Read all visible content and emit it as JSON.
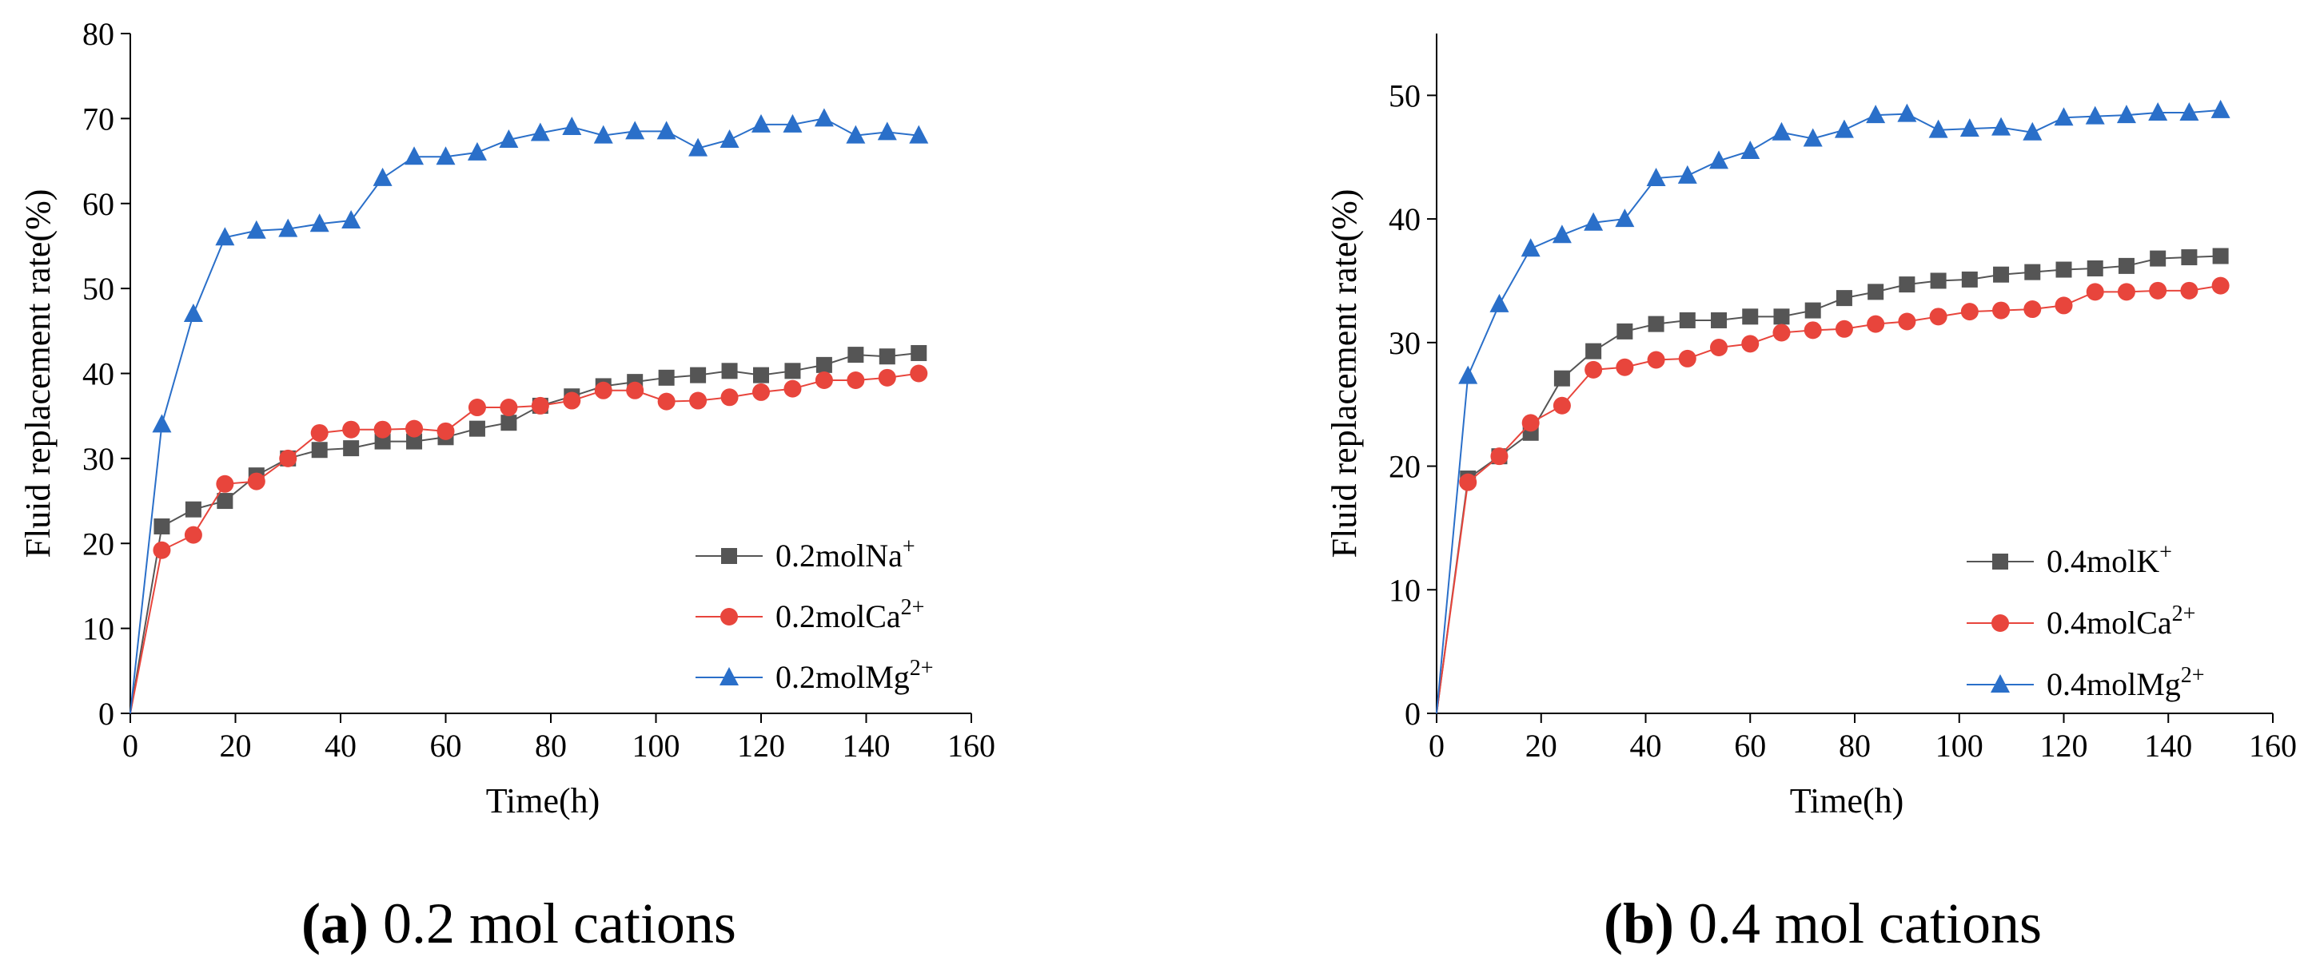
{
  "chart_data": [
    {
      "type": "line",
      "panel": "a",
      "caption_letter": "(a)",
      "caption_text": " 0.2 mol cations",
      "xlabel": "Time(h)",
      "ylabel": "Fluid replacement rate(%)",
      "xlim": [
        0,
        160
      ],
      "ylim": [
        0,
        80
      ],
      "xticks": [
        0,
        20,
        40,
        60,
        80,
        100,
        120,
        140,
        160
      ],
      "yticks": [
        0,
        10,
        20,
        30,
        40,
        50,
        60,
        70,
        80
      ],
      "legend_position": "lower-right",
      "series": [
        {
          "name": "0.2molNa",
          "superscript": "+",
          "marker": "square",
          "color": "#555555",
          "x": [
            0,
            6,
            12,
            18,
            24,
            30,
            36,
            42,
            48,
            54,
            60,
            66,
            72,
            78,
            84,
            90,
            96,
            102,
            108,
            114,
            120,
            126,
            132,
            138,
            144,
            150
          ],
          "y": [
            0,
            22,
            24,
            25,
            28,
            30,
            31,
            31.2,
            32,
            32,
            32.5,
            33.5,
            34.2,
            36.2,
            37.3,
            38.5,
            39,
            39.5,
            39.8,
            40.3,
            39.8,
            40.3,
            41,
            42.2,
            42,
            42.4
          ]
        },
        {
          "name": "0.2molCa",
          "superscript": "2+",
          "marker": "circle",
          "color": "#e8453c",
          "x": [
            0,
            6,
            12,
            18,
            24,
            30,
            36,
            42,
            48,
            54,
            60,
            66,
            72,
            78,
            84,
            90,
            96,
            102,
            108,
            114,
            120,
            126,
            132,
            138,
            144,
            150
          ],
          "y": [
            0,
            19.2,
            21,
            27,
            27.3,
            30,
            33,
            33.4,
            33.4,
            33.5,
            33.2,
            36,
            36,
            36.2,
            36.8,
            38,
            38,
            36.7,
            36.8,
            37.2,
            37.8,
            38.2,
            39.2,
            39.2,
            39.5,
            40
          ]
        },
        {
          "name": "0.2molMg",
          "superscript": "2+",
          "marker": "triangle",
          "color": "#2a6fc9",
          "x": [
            0,
            6,
            12,
            18,
            24,
            30,
            36,
            42,
            48,
            54,
            60,
            66,
            72,
            78,
            84,
            90,
            96,
            102,
            108,
            114,
            120,
            126,
            132,
            138,
            144,
            150
          ],
          "y": [
            0,
            34,
            47,
            56,
            56.8,
            57,
            57.6,
            58,
            63,
            65.5,
            65.5,
            66,
            67.5,
            68.3,
            69,
            68,
            68.5,
            68.5,
            66.5,
            67.5,
            69.3,
            69.3,
            70,
            68,
            68.4,
            68
          ]
        }
      ]
    },
    {
      "type": "line",
      "panel": "b",
      "caption_letter": "(b)",
      "caption_text": " 0.4 mol cations",
      "xlabel": "Time(h)",
      "ylabel": "Fluid replacement rate(%)",
      "xlim": [
        0,
        160
      ],
      "ylim": [
        0,
        55
      ],
      "xticks": [
        0,
        20,
        40,
        60,
        80,
        100,
        120,
        140,
        160
      ],
      "yticks": [
        0,
        10,
        20,
        30,
        40,
        50
      ],
      "legend_position": "lower-right",
      "series": [
        {
          "name": "0.4molK",
          "superscript": "+",
          "marker": "square",
          "color": "#555555",
          "x": [
            0,
            6,
            12,
            18,
            24,
            30,
            36,
            42,
            48,
            54,
            60,
            66,
            72,
            78,
            84,
            90,
            96,
            102,
            108,
            114,
            120,
            126,
            132,
            138,
            144,
            150
          ],
          "y": [
            0,
            19,
            20.8,
            22.7,
            27.1,
            29.3,
            30.9,
            31.5,
            31.8,
            31.8,
            32.1,
            32.1,
            32.6,
            33.6,
            34.1,
            34.7,
            35,
            35.1,
            35.5,
            35.7,
            35.9,
            36,
            36.2,
            36.8,
            36.9,
            37
          ]
        },
        {
          "name": "0.4molCa",
          "superscript": "2+",
          "marker": "circle",
          "color": "#e8453c",
          "x": [
            0,
            6,
            12,
            18,
            24,
            30,
            36,
            42,
            48,
            54,
            60,
            66,
            72,
            78,
            84,
            90,
            96,
            102,
            108,
            114,
            120,
            126,
            132,
            138,
            144,
            150
          ],
          "y": [
            0,
            18.7,
            20.8,
            23.5,
            24.9,
            27.8,
            28,
            28.6,
            28.7,
            29.6,
            29.9,
            30.8,
            31,
            31.1,
            31.5,
            31.7,
            32.1,
            32.5,
            32.6,
            32.7,
            33,
            34.1,
            34.1,
            34.2,
            34.2,
            34.6
          ]
        },
        {
          "name": "0.4molMg",
          "superscript": "2+",
          "marker": "triangle",
          "color": "#2a6fc9",
          "x": [
            0,
            6,
            12,
            18,
            24,
            30,
            36,
            42,
            48,
            54,
            60,
            66,
            72,
            78,
            84,
            90,
            96,
            102,
            108,
            114,
            120,
            126,
            132,
            138,
            144,
            150
          ],
          "y": [
            0,
            27.3,
            33.1,
            37.6,
            38.7,
            39.7,
            40,
            43.3,
            43.5,
            44.7,
            45.5,
            47,
            46.5,
            47.2,
            48.4,
            48.5,
            47.2,
            47.3,
            47.4,
            47,
            48.2,
            48.3,
            48.4,
            48.6,
            48.6,
            48.8
          ]
        }
      ]
    }
  ]
}
